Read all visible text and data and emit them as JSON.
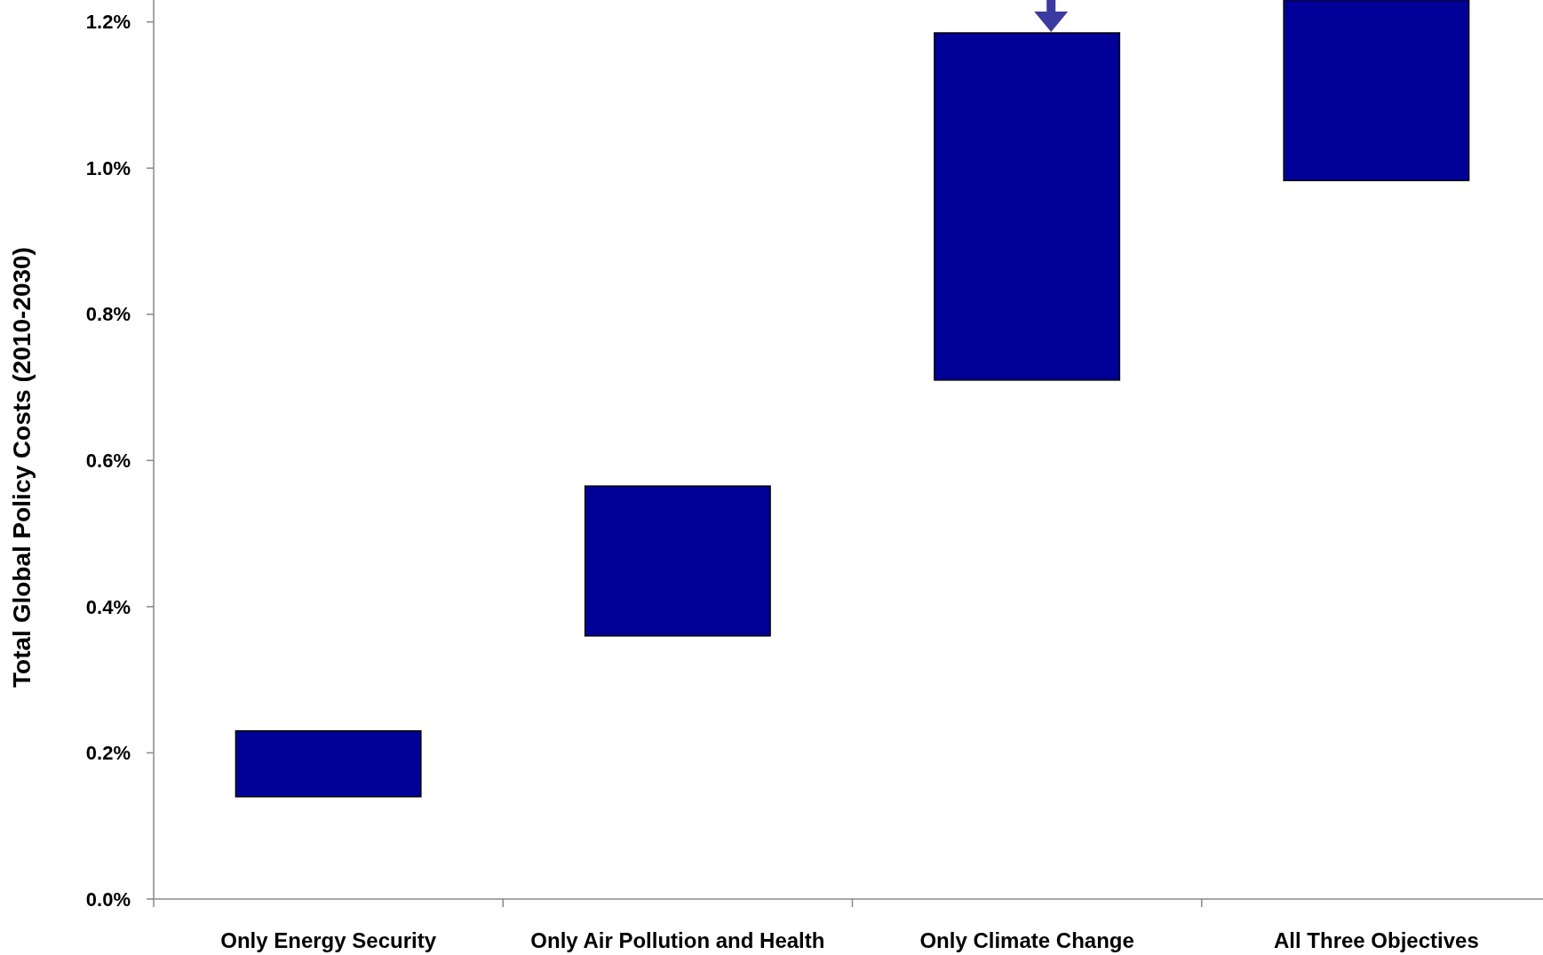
{
  "chart_data": {
    "type": "bar",
    "ylabel": "Total Global Policy Costs (2010-2030)",
    "categories": [
      "Only Energy Security",
      "Only Air Pollution and Health",
      "Only Climate Change",
      "All Three Objectives"
    ],
    "values": [
      0.09,
      0.205,
      0.475,
      0.247
    ],
    "base": [
      0.14,
      0.36,
      0.71,
      0.983
    ],
    "color": "#000099",
    "ylim": [
      0,
      1.23
    ],
    "yticks": [
      {
        "value": 0,
        "label": "0.0%"
      },
      {
        "value": 0.2,
        "label": "0.2%"
      },
      {
        "value": 0.4,
        "label": "0.4%"
      },
      {
        "value": 0.6,
        "label": "0.6%"
      },
      {
        "value": 0.8,
        "label": "0.8%"
      },
      {
        "value": 1.0,
        "label": "1.0%"
      },
      {
        "value": 1.2,
        "label": "1.2%"
      }
    ],
    "grid": false
  }
}
